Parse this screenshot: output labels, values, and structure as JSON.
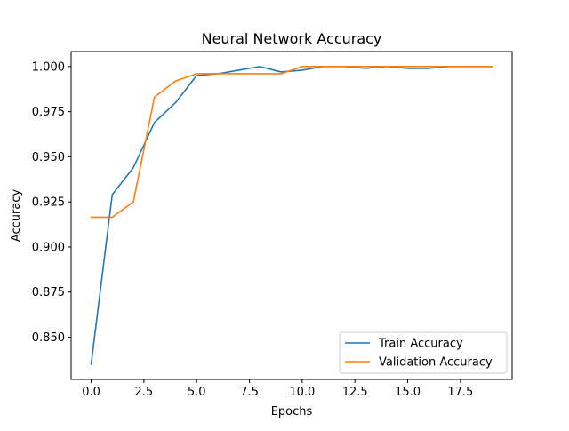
{
  "chart_data": {
    "type": "line",
    "title": "Neural Network Accuracy",
    "xlabel": "Epochs",
    "ylabel": "Accuracy",
    "xlim": [
      -0.95,
      19.95
    ],
    "ylim": [
      0.8266,
      1.0083
    ],
    "xticks": [
      0,
      2.5,
      5,
      7.5,
      10,
      12.5,
      15,
      17.5
    ],
    "xtick_labels": [
      "0.0",
      "2.5",
      "5.0",
      "7.5",
      "10.0",
      "12.5",
      "15.0",
      "17.5"
    ],
    "yticks": [
      0.85,
      0.875,
      0.9,
      0.925,
      0.95,
      0.975,
      1.0
    ],
    "ytick_labels": [
      "0.850",
      "0.875",
      "0.900",
      "0.925",
      "0.950",
      "0.975",
      "1.000"
    ],
    "grid": false,
    "legend_position": "lower right",
    "x": [
      0,
      1,
      2,
      3,
      4,
      5,
      6,
      7,
      8,
      9,
      10,
      11,
      12,
      13,
      14,
      15,
      16,
      17,
      18,
      19
    ],
    "series": [
      {
        "name": "Train Accuracy",
        "color": "#1f77b4",
        "values": [
          0.835,
          0.929,
          0.944,
          0.969,
          0.98,
          0.995,
          0.996,
          0.998,
          1.0,
          0.997,
          0.998,
          1.0,
          1.0,
          0.999,
          1.0,
          0.999,
          0.999,
          1.0,
          1.0,
          1.0
        ]
      },
      {
        "name": "Validation Accuracy",
        "color": "#ff7f0e",
        "values": [
          0.9165,
          0.9165,
          0.925,
          0.983,
          0.992,
          0.996,
          0.996,
          0.996,
          0.996,
          0.996,
          1.0,
          1.0,
          1.0,
          1.0,
          1.0,
          1.0,
          1.0,
          1.0,
          1.0,
          1.0
        ]
      }
    ]
  }
}
